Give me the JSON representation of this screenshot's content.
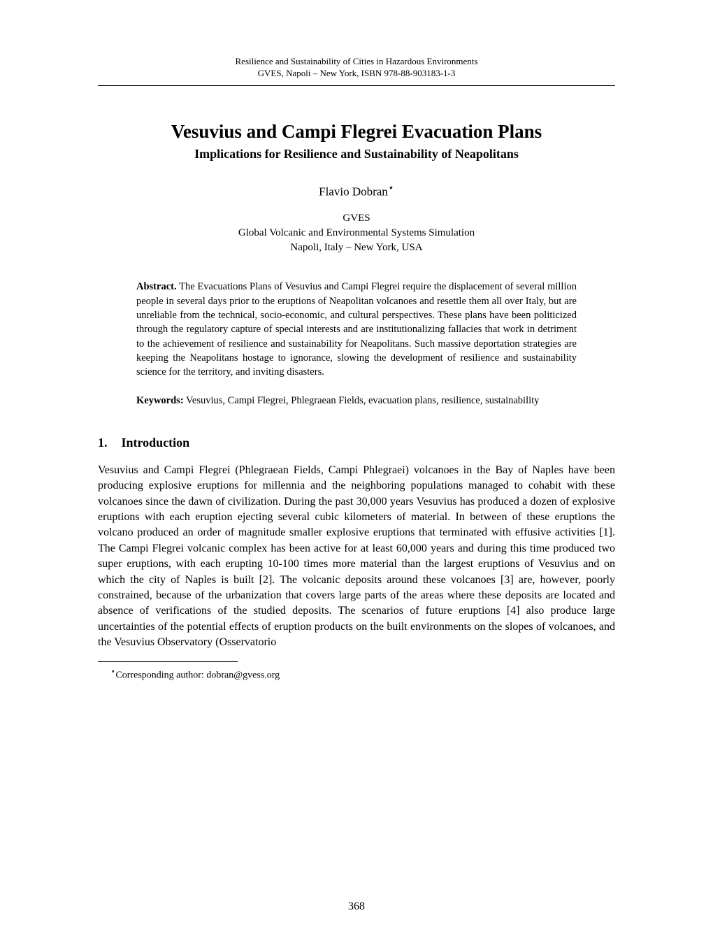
{
  "header": {
    "line1": "Resilience and Sustainability of Cities in Hazardous Environments",
    "line2": "GVES, Napoli – New York, ISBN 978-88-903183-1-3"
  },
  "title": "Vesuvius and Campi Flegrei Evacuation Plans",
  "subtitle": "Implications for Resilience and Sustainability of Neapolitans",
  "author": "Flavio Dobran",
  "author_star": "⋆",
  "affiliation": {
    "line1": "GVES",
    "line2": "Global Volcanic and Environmental Systems Simulation",
    "line3": "Napoli, Italy – New York, USA"
  },
  "abstract": {
    "label": "Abstract.",
    "text": " The Evacuations Plans of Vesuvius and Campi Flegrei require the displacement of several million people in several days prior to the eruptions of Neapolitan volcanoes and resettle them all over Italy, but are unreliable from the technical, socio-economic, and cultural perspectives. These plans have been politicized through the regulatory capture of special interests and are institutionalizing fallacies that work in detriment to the achievement of resilience and sustainability for Neapolitans. Such massive deportation strategies are keeping the Neapolitans hostage to ignorance, slowing the development of resilience and sustainability science for the territory, and inviting disasters."
  },
  "keywords": {
    "label": "Keywords:",
    "text": " Vesuvius, Campi Flegrei, Phlegraean Fields, evacuation plans, resilience, sustainability"
  },
  "section": {
    "number": "1.",
    "title": "Introduction"
  },
  "body": "Vesuvius and Campi Flegrei (Phlegraean Fields, Campi Phlegraei) volcanoes in the Bay of Naples have been producing explosive eruptions for millennia and the neighboring populations managed to cohabit with these volcanoes since the dawn of civilization. During the past 30,000 years Vesuvius has produced a dozen of explosive eruptions with each eruption ejecting several cubic kilometers of material. In between of these eruptions the volcano produced an order of magnitude smaller explosive eruptions that terminated with effusive activities [1]. The Campi Flegrei volcanic complex has been active for at least 60,000 years and during this time produced two super eruptions, with each erupting 10-100 times more material than the largest eruptions of Vesuvius and on which the city of Naples is built [2]. The volcanic deposits around these volcanoes [3] are, however, poorly constrained, because of the urbanization that covers large parts of the areas where these deposits are located and absence of verifications of the studied deposits. The scenarios of future eruptions [4] also produce large uncertainties of the potential effects of eruption products on the built environments on the slopes of volcanoes, and the Vesuvius Observatory (Osservatorio",
  "footnote": {
    "star": "⋆",
    "text": "Corresponding author: dobran@gvess.org"
  },
  "page_number": "368",
  "colors": {
    "background": "#ffffff",
    "text": "#000000",
    "rule": "#000000"
  },
  "fonts": {
    "family": "Times New Roman",
    "header_size": 13,
    "title_size": 27,
    "subtitle_size": 18,
    "author_size": 17,
    "affiliation_size": 15,
    "abstract_size": 14.5,
    "section_heading_size": 18,
    "body_size": 16,
    "footnote_size": 14,
    "page_number_size": 16
  }
}
